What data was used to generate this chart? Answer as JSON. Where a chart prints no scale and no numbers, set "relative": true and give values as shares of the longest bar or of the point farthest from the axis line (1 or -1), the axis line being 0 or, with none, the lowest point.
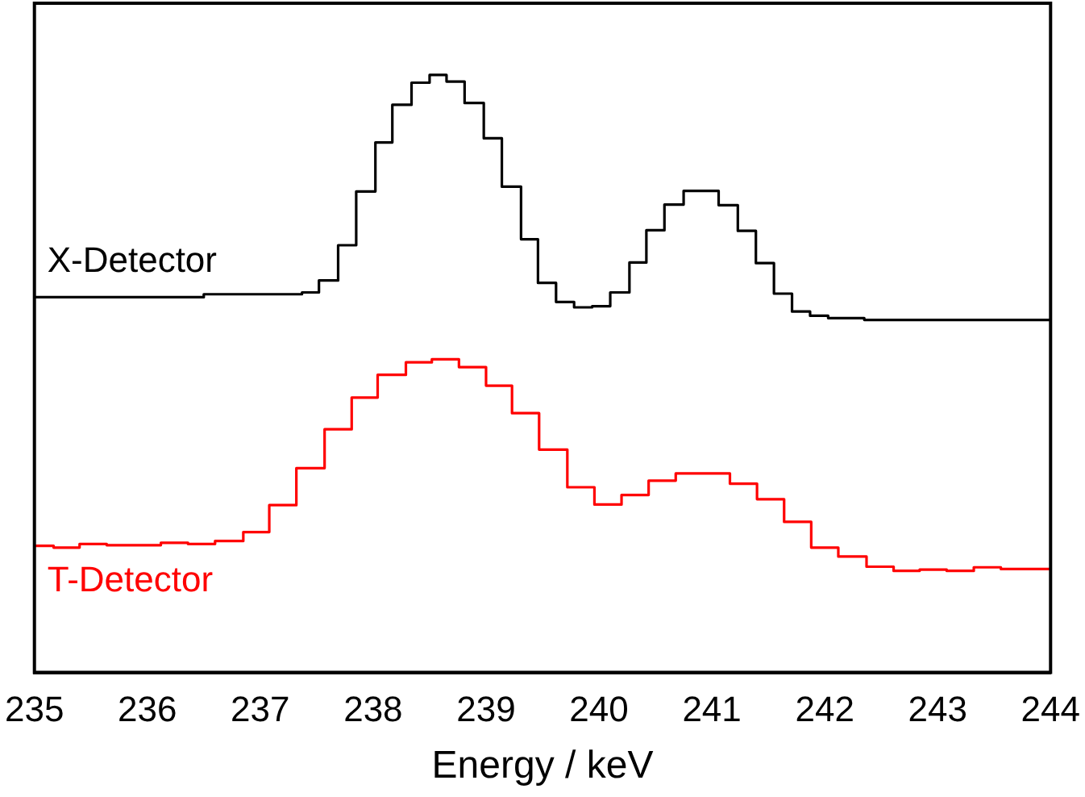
{
  "chart_data": {
    "type": "step",
    "xlabel": "Energy / keV",
    "relative": true,
    "xlim": [
      235,
      244
    ],
    "xticks": [
      235,
      236,
      237,
      238,
      239,
      240,
      241,
      242,
      243,
      244
    ],
    "grid": false,
    "legend": false,
    "marker": "none",
    "line_style": "solid",
    "series": [
      {
        "name": "X-Detector",
        "color": "#000000",
        "x": [
          235,
          236.5,
          237.37,
          237.52,
          237.69,
          237.85,
          238.02,
          238.17,
          238.34,
          238.5,
          238.65,
          238.81,
          238.98,
          239.14,
          239.31,
          239.46,
          239.62,
          239.78,
          239.94,
          240.1,
          240.27,
          240.42,
          240.58,
          240.75,
          241.06,
          241.23,
          241.39,
          241.55,
          241.71,
          241.87,
          242.03,
          242.35,
          244
        ],
        "values": [
          0.628,
          0.633,
          0.636,
          0.656,
          0.715,
          0.805,
          0.887,
          0.95,
          0.987,
          1,
          0.989,
          0.953,
          0.894,
          0.813,
          0.725,
          0.652,
          0.62,
          0.611,
          0.613,
          0.636,
          0.686,
          0.74,
          0.783,
          0.806,
          0.782,
          0.739,
          0.685,
          0.634,
          0.604,
          0.597,
          0.593,
          0.59,
          0.59
        ]
      },
      {
        "name": "T-Detector",
        "color": "#ff0000",
        "x": [
          235,
          235.17,
          235.4,
          235.64,
          236.12,
          236.36,
          236.6,
          236.85,
          237.08,
          237.32,
          237.57,
          237.81,
          238.04,
          238.29,
          238.52,
          238.76,
          239,
          239.23,
          239.47,
          239.72,
          239.96,
          240.2,
          240.44,
          240.68,
          241.16,
          241.4,
          241.64,
          241.88,
          242.12,
          242.37,
          242.61,
          242.84,
          243.08,
          243.32,
          243.56,
          244
        ],
        "values": [
          0.212,
          0.209,
          0.215,
          0.213,
          0.217,
          0.215,
          0.22,
          0.235,
          0.28,
          0.342,
          0.407,
          0.46,
          0.498,
          0.519,
          0.524,
          0.511,
          0.48,
          0.434,
          0.373,
          0.31,
          0.281,
          0.297,
          0.321,
          0.333,
          0.316,
          0.29,
          0.252,
          0.209,
          0.194,
          0.177,
          0.17,
          0.172,
          0.17,
          0.176,
          0.173,
          0.173
        ]
      }
    ]
  }
}
